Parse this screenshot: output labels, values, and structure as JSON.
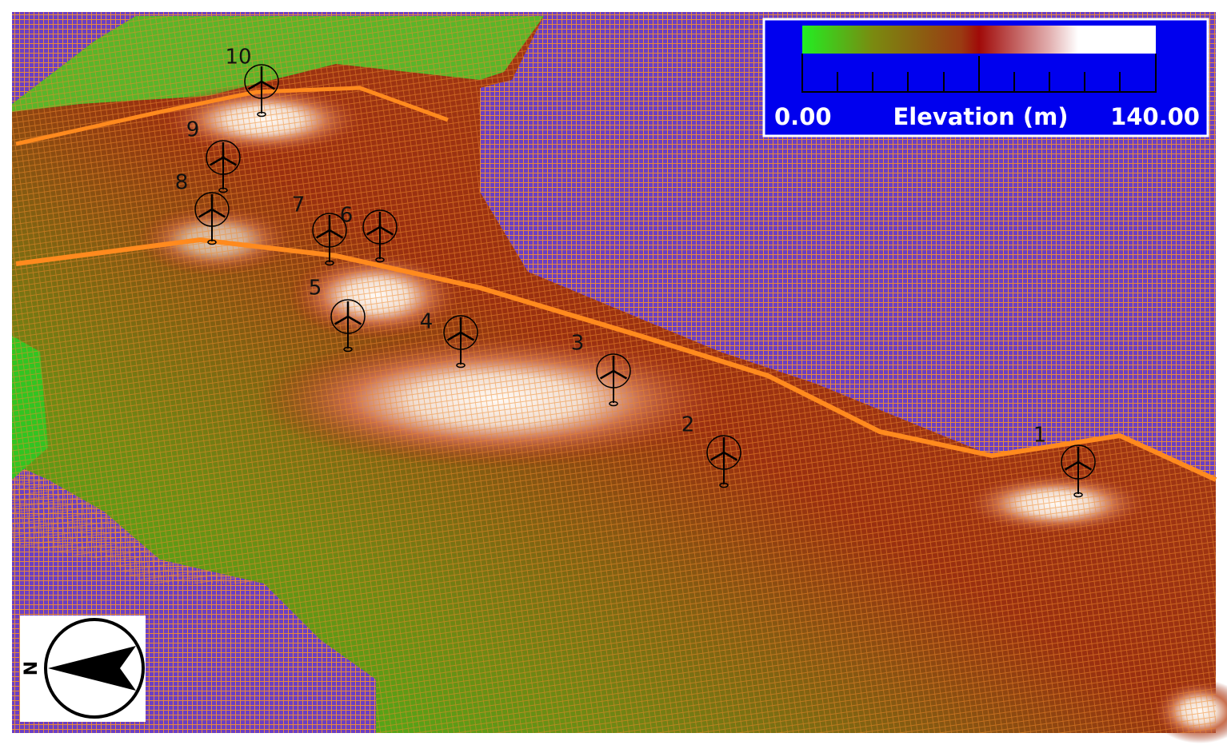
{
  "legend": {
    "min_label": "0.00",
    "title": "Elevation (m)",
    "max_label": "140.00"
  },
  "compass": {
    "label": "N"
  },
  "turbines": [
    {
      "label": "1"
    },
    {
      "label": "2"
    },
    {
      "label": "3"
    },
    {
      "label": "4"
    },
    {
      "label": "5"
    },
    {
      "label": "6"
    },
    {
      "label": "7"
    },
    {
      "label": "8"
    },
    {
      "label": "9"
    },
    {
      "label": "10"
    }
  ]
}
